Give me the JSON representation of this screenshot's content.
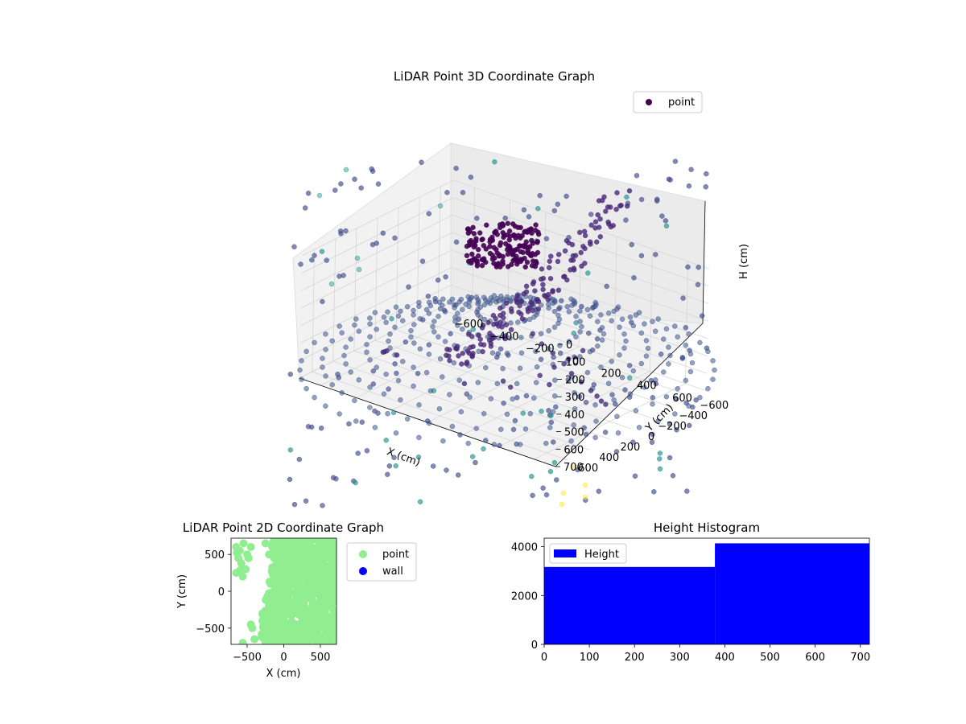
{
  "chart_data": [
    {
      "type": "scatter",
      "title": "LiDAR Point 3D Coordinate Graph",
      "xlabel": "X (cm)",
      "ylabel": "Y (cm)",
      "zlabel": "H (cm)",
      "xlim": [
        -720,
        720
      ],
      "ylim": [
        -720,
        720
      ],
      "zlim": [
        700,
        0
      ],
      "x_ticks": [
        -600,
        -400,
        -200,
        0,
        200,
        400,
        600
      ],
      "y_ticks": [
        -600,
        -400,
        -200,
        0,
        200,
        400,
        600
      ],
      "z_ticks": [
        0,
        100,
        200,
        300,
        400,
        500,
        600,
        700
      ],
      "grid": true,
      "legend": {
        "placement": "top-right",
        "entries": [
          "point"
        ]
      },
      "colormap": "viridis",
      "colors": {
        "dark": "#440154",
        "mid": "#3b528b",
        "teal": "#21918c",
        "light": "#5ec962",
        "yellow": "#fde725"
      },
      "series": [
        {
          "name": "point",
          "note_points": "sampled",
          "points": [
            [
              520,
              620,
              40
            ],
            [
              560,
              600,
              90
            ],
            [
              600,
              560,
              140
            ],
            [
              640,
              520,
              200
            ],
            [
              660,
              480,
              260
            ],
            [
              680,
              420,
              320
            ],
            [
              700,
              360,
              380
            ],
            [
              700,
              300,
              430
            ],
            [
              690,
              240,
              480
            ],
            [
              680,
              180,
              520
            ],
            [
              -500,
              300,
              600
            ],
            [
              -520,
              250,
              620
            ],
            [
              -480,
              200,
              640
            ],
            [
              -450,
              350,
              560
            ],
            [
              300,
              250,
              60
            ],
            [
              320,
              280,
              80
            ],
            [
              340,
              260,
              70
            ],
            [
              280,
              240,
              90
            ],
            [
              100,
              100,
              650
            ],
            [
              200,
              -100,
              660
            ],
            [
              0,
              0,
              680
            ],
            [
              -100,
              200,
              670
            ],
            [
              500,
              100,
              300
            ],
            [
              450,
              150,
              350
            ],
            [
              400,
              200,
              400
            ],
            [
              350,
              250,
              450
            ]
          ]
        }
      ]
    },
    {
      "type": "scatter",
      "title": "LiDAR Point 2D Coordinate Graph",
      "xlabel": "X (cm)",
      "ylabel": "Y (cm)",
      "xlim": [
        -720,
        720
      ],
      "ylim": [
        -720,
        720
      ],
      "x_ticks": [
        -500,
        0,
        500
      ],
      "y_ticks": [
        -500,
        0,
        500
      ],
      "x_tick_labels": [
        "−500",
        "0",
        "500"
      ],
      "y_tick_labels": [
        "−500",
        "0",
        "500"
      ],
      "legend": {
        "placement": "outside-right",
        "entries": [
          "point",
          "wall"
        ]
      },
      "colors": {
        "point": "#90ee90",
        "wall": "#0000ff"
      },
      "series": [
        {
          "name": "point",
          "note_points": "sampled",
          "points": [
            [
              -650,
              600
            ],
            [
              -600,
              550
            ],
            [
              -550,
              650
            ],
            [
              -500,
              500
            ],
            [
              -450,
              600
            ],
            [
              -620,
              450
            ],
            [
              -580,
              380
            ],
            [
              -650,
              250
            ],
            [
              -600,
              280
            ],
            [
              -520,
              300
            ],
            [
              -560,
              200
            ],
            [
              -480,
              450
            ],
            [
              -640,
              520
            ],
            [
              -450,
              -450
            ],
            [
              -430,
              -500
            ],
            [
              -560,
              -700
            ],
            [
              -400,
              -650
            ],
            [
              -300,
              -620
            ],
            [
              -250,
              650
            ],
            [
              -200,
              500
            ],
            [
              -150,
              300
            ],
            [
              -180,
              100
            ],
            [
              -150,
              -100
            ],
            [
              -180,
              -300
            ],
            [
              -200,
              -500
            ],
            [
              -220,
              -650
            ],
            [
              0,
              700
            ],
            [
              0,
              400
            ],
            [
              0,
              0
            ],
            [
              0,
              -400
            ],
            [
              0,
              -700
            ],
            [
              300,
              650
            ],
            [
              300,
              200
            ],
            [
              300,
              -300
            ],
            [
              300,
              -650
            ],
            [
              500,
              500
            ],
            [
              550,
              200
            ],
            [
              600,
              0
            ],
            [
              550,
              -250
            ],
            [
              500,
              -500
            ],
            [
              650,
              300
            ],
            [
              680,
              -100
            ],
            [
              600,
              -600
            ]
          ]
        },
        {
          "name": "wall",
          "points": []
        }
      ]
    },
    {
      "type": "bar",
      "title": "Height Histogram",
      "xlim": [
        0,
        720
      ],
      "ylim": [
        0,
        4350
      ],
      "x_ticks": [
        0,
        100,
        200,
        300,
        400,
        500,
        600,
        700
      ],
      "y_ticks": [
        0,
        2000,
        4000
      ],
      "legend": {
        "placement": "top-left",
        "entries": [
          "Height"
        ]
      },
      "colors": {
        "bar": "#0000ff"
      },
      "bins": [
        {
          "start": 0,
          "end": 378,
          "value": 3170
        },
        {
          "start": 378,
          "end": 720,
          "value": 4140
        }
      ],
      "series": [
        {
          "name": "Height"
        }
      ]
    }
  ]
}
